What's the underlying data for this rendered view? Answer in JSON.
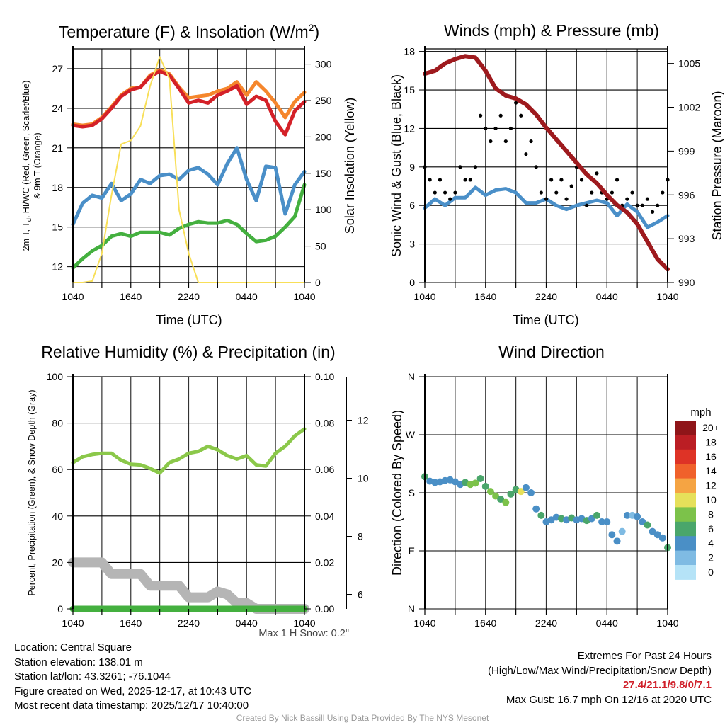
{
  "colors": {
    "red": "#d42128",
    "orange": "#f5862c",
    "green": "#44b03f",
    "blue": "#4a8fc8",
    "yellow": "#f8df58",
    "maroon": "#9e1a1e",
    "rh": "#8bc84a",
    "precip": "#44b03f",
    "snow": "#b5b5b5"
  },
  "time_ticks": [
    "1040",
    "1640",
    "2240",
    "0440",
    "1040"
  ],
  "chart_data": [
    {
      "type": "line",
      "title": "Temperature (F) & Insolation (W/m",
      "title_sup": "2",
      "title_end": ")",
      "xlabel": "Time (UTC)",
      "ylabel_line1": "2m T, T",
      "ylabel_sub": "d",
      "ylabel_line1b": ", HI/WC (Red, Green, Scarlet/Blue)",
      "ylabel_line2": "& 9m T (Orange)",
      "ylabel_right": "Solar Insolation (Yellow)",
      "ylim": [
        10.8,
        28.5
      ],
      "ylim_right": [
        0,
        321
      ],
      "yticks": [
        12,
        15,
        18,
        21,
        24,
        27
      ],
      "yticks_right": [
        0,
        50,
        100,
        150,
        200,
        250,
        300
      ],
      "x_hours": [
        0,
        1,
        2,
        3,
        4,
        5,
        6,
        7,
        8,
        9,
        10,
        11,
        12,
        13,
        14,
        15,
        16,
        17,
        18,
        19,
        20,
        21,
        22,
        23,
        24
      ],
      "series": [
        {
          "name": "9m T",
          "color": "orange",
          "values": [
            22.8,
            22.7,
            22.8,
            23.3,
            24.1,
            25.0,
            25.5,
            25.6,
            26.5,
            26.9,
            26.6,
            25.6,
            24.8,
            24.9,
            25.0,
            25.3,
            25.5,
            26.0,
            25.0,
            26.0,
            25.3,
            24.4,
            23.3,
            24.5,
            25.2
          ]
        },
        {
          "name": "2m T",
          "color": "red",
          "values": [
            22.7,
            22.6,
            22.7,
            23.2,
            24.0,
            24.9,
            25.4,
            25.6,
            26.4,
            26.8,
            26.5,
            25.5,
            24.4,
            24.6,
            24.4,
            25.0,
            25.3,
            25.7,
            24.3,
            24.9,
            24.6,
            23.0,
            22.0,
            23.8,
            24.5
          ]
        },
        {
          "name": "Td",
          "color": "green",
          "values": [
            11.9,
            12.6,
            13.2,
            13.6,
            14.3,
            14.5,
            14.3,
            14.6,
            14.6,
            14.6,
            14.4,
            14.9,
            15.2,
            15.4,
            15.3,
            15.3,
            15.5,
            15.2,
            14.5,
            13.9,
            14.0,
            14.3,
            15.0,
            15.8,
            18.2
          ]
        },
        {
          "name": "WC",
          "color": "blue",
          "values": [
            15.2,
            16.8,
            17.4,
            17.2,
            18.3,
            17.0,
            17.5,
            18.6,
            18.3,
            18.9,
            19.0,
            18.6,
            19.3,
            19.5,
            19.0,
            18.2,
            19.8,
            21.0,
            18.6,
            17.0,
            19.6,
            19.5,
            16.0,
            18.2,
            19.2
          ]
        },
        {
          "name": "Insolation",
          "color": "yellow",
          "axis": "right",
          "values": [
            0,
            0,
            2,
            40,
            120,
            190,
            195,
            215,
            270,
            310,
            280,
            100,
            40,
            0,
            0,
            0,
            0,
            0,
            0,
            0,
            0,
            0,
            0,
            0,
            0
          ]
        }
      ]
    },
    {
      "type": "line",
      "title": "Winds (mph) & Pressure (mb)",
      "xlabel": "Time (UTC)",
      "ylabel": "Sonic Wind & Gust (Blue, Black)",
      "ylabel_right": "Station Pressure (Maroon)",
      "ylim": [
        0,
        18.2
      ],
      "ylim_right": [
        990,
        1006
      ],
      "yticks": [
        0,
        3,
        6,
        9,
        12,
        15,
        18
      ],
      "yticks_right": [
        990,
        993,
        996,
        999,
        1002,
        1005
      ],
      "x_hours": [
        0,
        1,
        2,
        3,
        4,
        5,
        6,
        7,
        8,
        9,
        10,
        11,
        12,
        13,
        14,
        15,
        16,
        17,
        18,
        19,
        20,
        21,
        22,
        23,
        24
      ],
      "series": [
        {
          "name": "Wind",
          "color": "blue",
          "values": [
            5.8,
            6.5,
            6.0,
            6.6,
            6.6,
            7.4,
            6.8,
            7.2,
            7.3,
            7.0,
            6.2,
            6.2,
            6.5,
            6.0,
            5.7,
            6.0,
            6.2,
            6.4,
            6.2,
            5.2,
            6.1,
            5.5,
            4.3,
            4.7,
            5.2
          ]
        },
        {
          "name": "Pressure",
          "color": "maroon",
          "axis": "right",
          "values": [
            1004.3,
            1004.5,
            1005.0,
            1005.3,
            1005.5,
            1005.4,
            1004.5,
            1003.3,
            1002.8,
            1002.6,
            1002.2,
            1001.5,
            1000.6,
            999.8,
            999.0,
            998.2,
            997.4,
            996.8,
            996.0,
            995.3,
            994.8,
            994.0,
            992.8,
            991.6,
            990.9
          ]
        }
      ],
      "gusts_halfhourly": [
        9,
        8,
        7,
        8,
        7,
        6.5,
        7,
        9,
        8,
        8,
        9,
        13,
        12,
        11,
        12,
        13,
        11,
        12,
        14,
        13,
        10,
        11,
        9,
        7,
        6.5,
        8,
        7,
        8,
        6.5,
        7.5,
        9,
        8,
        6,
        7,
        8.5,
        7,
        6.5,
        7,
        8,
        6,
        6.5,
        7,
        6,
        6,
        6.5,
        5.5,
        6,
        7,
        8
      ]
    },
    {
      "type": "line",
      "title": "Relative Humidity (%) & Precipitation (in)",
      "ylabel": "Percent, Precipitation (Green), & Snow Depth (Gray)",
      "ylim": [
        0,
        100
      ],
      "ylim_right": [
        0,
        0.1
      ],
      "ylim_snow": [
        5.5,
        13.5
      ],
      "yticks": [
        0,
        20,
        40,
        60,
        80,
        100
      ],
      "yticks_right": [
        "0.00",
        "0.02",
        "0.04",
        "0.06",
        "0.08",
        "0.10"
      ],
      "yticks_snow": [
        6,
        8,
        10,
        12
      ],
      "snow_max_label": "Max 1 H Snow: 0.2\"",
      "x_hours": [
        0,
        1,
        2,
        3,
        4,
        5,
        6,
        7,
        8,
        9,
        10,
        11,
        12,
        13,
        14,
        15,
        16,
        17,
        18,
        19,
        20,
        21,
        22,
        23,
        24
      ],
      "series": [
        {
          "name": "Snow Depth",
          "color": "snow",
          "axis": "snow",
          "values": [
            7.1,
            7.1,
            7.1,
            7.1,
            6.7,
            6.7,
            6.7,
            6.7,
            6.3,
            6.3,
            6.3,
            6.3,
            5.9,
            5.9,
            5.9,
            6.1,
            6.0,
            5.7,
            5.7,
            5.5,
            5.5,
            5.5,
            5.5,
            5.5,
            5.5
          ]
        },
        {
          "name": "RH",
          "color": "rh",
          "values": [
            63,
            65.5,
            66.5,
            67,
            67,
            64,
            62.3,
            62,
            60.5,
            58.5,
            63,
            64.5,
            67,
            67.8,
            70,
            68.5,
            66,
            64.5,
            66,
            62,
            61.5,
            67,
            70,
            74.5,
            77.5
          ]
        },
        {
          "name": "Precipitation",
          "color": "precip",
          "axis": "right",
          "values": [
            0,
            0,
            0,
            0,
            0,
            0,
            0,
            0,
            0,
            0,
            0,
            0,
            0,
            0,
            0,
            0,
            0,
            0,
            0,
            0,
            0,
            0,
            0,
            0,
            0
          ]
        }
      ]
    },
    {
      "type": "scatter",
      "title": "Wind Direction",
      "ylabel": "Direction (Colored By Speed)",
      "yticks": [
        {
          "deg": 0,
          "label": "N"
        },
        {
          "deg": 90,
          "label": "E"
        },
        {
          "deg": 180,
          "label": "S"
        },
        {
          "deg": 270,
          "label": "W"
        },
        {
          "deg": 360,
          "label": "N"
        }
      ],
      "points_halfhourly": {
        "dir": [
          205,
          198,
          196,
          197,
          199,
          200,
          197,
          193,
          196,
          193,
          195,
          202,
          190,
          182,
          175,
          170,
          165,
          178,
          185,
          182,
          188,
          180,
          155,
          145,
          135,
          138,
          142,
          140,
          138,
          141,
          138,
          140,
          137,
          140,
          145,
          135,
          135,
          115,
          105,
          120,
          145,
          145,
          143,
          135,
          130,
          120,
          115,
          110,
          95
        ],
        "speed": [
          6,
          4,
          4,
          4,
          4,
          4,
          4,
          4,
          6,
          8,
          8,
          7,
          7,
          8,
          8,
          6,
          8,
          6,
          7,
          10,
          4,
          4,
          4,
          6,
          4,
          4,
          4,
          6,
          4,
          6,
          4,
          4,
          6,
          4,
          6,
          4,
          4,
          4,
          4,
          2,
          4,
          2,
          4,
          4,
          6,
          4,
          4,
          4,
          6
        ]
      },
      "legend_title": "mph",
      "legend": [
        {
          "label": "20+",
          "color": "#8f1519"
        },
        {
          "label": "18",
          "color": "#bb1e24"
        },
        {
          "label": "16",
          "color": "#de3326"
        },
        {
          "label": "14",
          "color": "#f0612b"
        },
        {
          "label": "12",
          "color": "#f5a443"
        },
        {
          "label": "10",
          "color": "#e6e05a"
        },
        {
          "label": "8",
          "color": "#7cc24a"
        },
        {
          "label": "6",
          "color": "#4aa66b"
        },
        {
          "label": "4",
          "color": "#4a8fc6"
        },
        {
          "label": "2",
          "color": "#7fbbe3"
        },
        {
          "label": "0",
          "color": "#b5e3f7"
        }
      ]
    }
  ],
  "info": {
    "location": "Location: Central Square",
    "elevation": "Station elevation: 138.01 m",
    "latlon": "Station lat/lon: 43.3261; -76.1044",
    "created": "Figure created on Wed, 2025-12-17, at 10:43 UTC",
    "recent": "Most recent data timestamp: 2025/12/17 10:40:00"
  },
  "extremes": {
    "heading": "Extremes For Past 24 Hours",
    "subheading": "(High/Low/Max Wind/Precipitation/Snow Depth)",
    "values": "27.4/21.1/9.8/0/7.1",
    "max_gust": "Max Gust: 16.7 mph On 12/16 at 2020 UTC"
  },
  "credit": "Created By Nick Bassill Using Data Provided By The NYS Mesonet"
}
